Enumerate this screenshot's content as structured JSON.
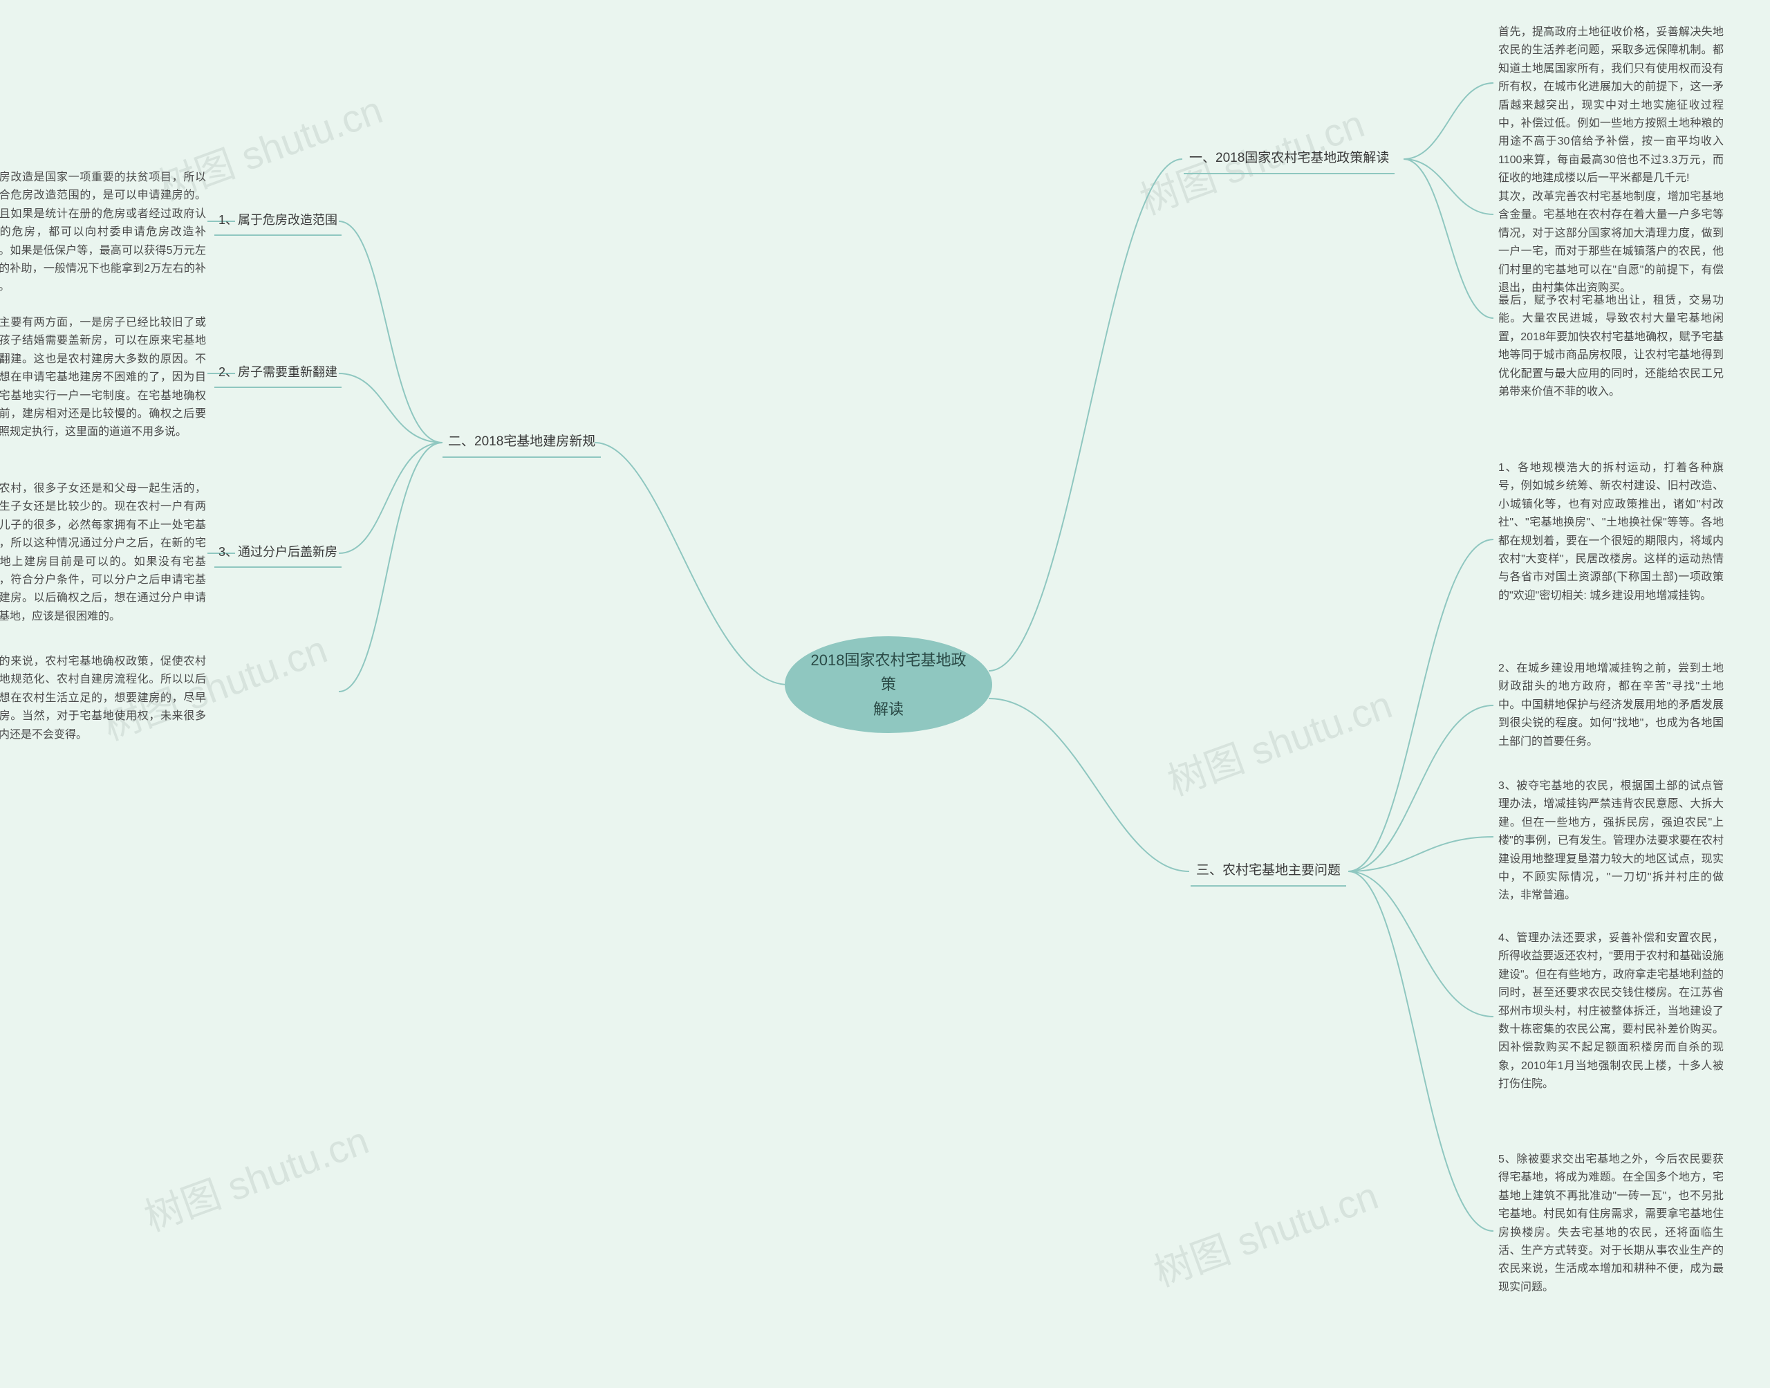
{
  "center": {
    "title": "2018国家农村宅基地政策\n解读"
  },
  "watermark": "树图 shutu.cn",
  "colors": {
    "background": "#eaf5ef",
    "center_fill": "#8fc7c0",
    "line": "#8fc7c0",
    "text": "#3a3a3a",
    "leaf_text": "#4a4a4a",
    "watermark": "rgba(100,120,110,0.14)"
  },
  "branches": {
    "right": [
      {
        "label": "一、2018国家农村宅基地政策解读",
        "leaves": [
          {
            "text": "首先，提高政府土地征收价格，妥善解决失地农民的生活养老问题，采取多远保障机制。都知道土地属国家所有，我们只有使用权而没有所有权，在城市化进展加大的前提下，这一矛盾越来越突出，现实中对土地实施征收过程中，补偿过低。例如一些地方按照土地种粮的用途不高于30倍给予补偿，按一亩平均收入1100来算，每亩最高30倍也不过3.3万元，而征收的地建成楼以后一平米都是几千元!"
          },
          {
            "text": "其次，改革完善农村宅基地制度，增加宅基地含金量。宅基地在农村存在着大量一户多宅等情况，对于这部分国家将加大清理力度，做到一户一宅，而对于那些在城镇落户的农民，他们村里的宅基地可以在\"自愿\"的前提下，有偿退出，由村集体出资购买。"
          },
          {
            "text": "最后，赋予农村宅基地出让，租赁，交易功能。大量农民进城，导致农村大量宅基地闲置，2018年要加快农村宅基地确权，赋予宅基地等同于城市商品房权限，让农村宅基地得到优化配置与最大应用的同时，还能给农民工兄弟带来价值不菲的收入。"
          }
        ]
      },
      {
        "label": "三、农村宅基地主要问题",
        "leaves": [
          {
            "text": "1、各地规模浩大的拆村运动，打着各种旗号，例如城乡统筹、新农村建设、旧村改造、小城镇化等，也有对应政策推出，诸如\"村改社\"、\"宅基地换房\"、\"土地换社保\"等等。各地都在规划着，要在一个很短的期限内，将域内农村\"大变样\"，民居改楼房。这样的运动热情与各省市对国土资源部(下称国土部)一项政策的\"欢迎\"密切相关: 城乡建设用地增减挂钩。"
          },
          {
            "text": "2、在城乡建设用地增减挂钩之前，尝到土地财政甜头的地方政府，都在辛苦\"寻找\"土地中。中国耕地保护与经济发展用地的矛盾发展到很尖锐的程度。如何\"找地\"，也成为各地国土部门的首要任务。"
          },
          {
            "text": "3、被夺宅基地的农民，根据国土部的试点管理办法，增减挂钩严禁违背农民意愿、大拆大建。但在一些地方，强拆民房，强迫农民\"上楼\"的事例，已有发生。管理办法要求要在农村建设用地整理复垦潜力较大的地区试点，现实中，不顾实际情况，\"一刀切\"拆并村庄的做法，非常普遍。"
          },
          {
            "text": "4、管理办法还要求，妥善补偿和安置农民，所得收益要返还农村，\"要用于农村和基础设施建设\"。但在有些地方，政府拿走宅基地利益的同时，甚至还要求农民交钱住楼房。在江苏省邳州市坝头村，村庄被整体拆迁，当地建设了数十栋密集的农民公寓，要村民补差价购买。因补偿款购买不起足额面积楼房而自杀的现象，2010年1月当地强制农民上楼，十多人被打伤住院。"
          },
          {
            "text": "5、除被要求交出宅基地之外，今后农民要获得宅基地，将成为难题。在全国多个地方，宅基地上建筑不再批准动\"一砖一瓦\"，也不另批宅基地。村民如有住房需求，需要拿宅基地住房换楼房。失去宅基地的农民，还将面临生活、生产方式转变。对于长期从事农业生产的农民来说，生活成本增加和耕种不便，成为最现实问题。"
          }
        ]
      }
    ],
    "left": [
      {
        "label": "二、2018宅基地建房新规",
        "children": [
          {
            "label": "1、属于危房改造范围",
            "leaf": {
              "text": "危房改造是国家一项重要的扶贫项目，所以符合危房改造范围的，是可以申请建房的。并且如果是统计在册的危房或者经过政府认可的危房，都可以向村委申请危房改造补助。如果是低保户等，最高可以获得5万元左右的补助，一般情况下也能拿到2万左右的补助。"
            }
          },
          {
            "label": "2、房子需要重新翻建",
            "leaf": {
              "text": "这主要有两方面，一是房子已经比较旧了或者孩子结婚需要盖新房，可以在原来宅基地上翻建。这也是农村建房大多数的原因。不过想在申请宅基地建房不困难的了，因为目前宅基地实行一户一宅制度。在宅基地确权之前，建房相对还是比较慢的。确权之后要按照规定执行，这里面的道道不用多说。"
            }
          },
          {
            "label": "3、通过分户后盖新房",
            "leaf": {
              "text": "在农村，很多子女还是和父母一起生活的，独生子女还是比较少的。现在农村一户有两个儿子的很多，必然每家拥有不止一处宅基地，所以这种情况通过分户之后，在新的宅基地上建房目前是可以的。如果没有宅基地，符合分户条件，可以分户之后申请宅基地建房。以后确权之后，想在通过分户申请宅基地，应该是很困难的。"
            }
          }
        ],
        "summary": {
          "text": "总的来说，农村宅基地确权政策，促使农村用地规范化、农村自建房流程化。所以以后还想在农村生活立足的，想要建房的，尽早建房。当然，对于宅基地使用权，未来很多年内还是不会变得。"
        }
      }
    ]
  }
}
